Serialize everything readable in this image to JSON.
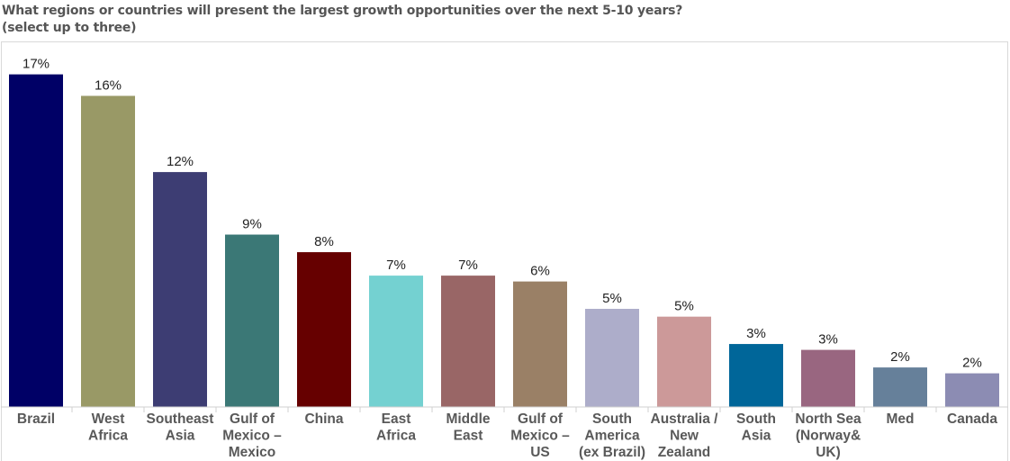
{
  "chart_data": {
    "type": "bar",
    "title": "What regions or countries will present the largest growth opportunities over the next 5-10 years?",
    "subtitle": "(select up to three)",
    "xlabel": "",
    "ylabel": "",
    "ylim": [
      0,
      17.5
    ],
    "grid": false,
    "legend": "none",
    "categories": [
      [
        "Brazil"
      ],
      [
        "West",
        "Africa"
      ],
      [
        "Southeast",
        "Asia"
      ],
      [
        "Gulf of",
        "Mexico –",
        "Mexico"
      ],
      [
        "China"
      ],
      [
        "East",
        "Africa"
      ],
      [
        "Middle",
        "East"
      ],
      [
        "Gulf of",
        "Mexico –",
        "US"
      ],
      [
        "South",
        "America",
        "(ex Brazil)"
      ],
      [
        "Australia /",
        "New",
        "Zealand"
      ],
      [
        "South",
        "Asia"
      ],
      [
        "North Sea",
        "(Norway&",
        "UK)"
      ],
      [
        "Med"
      ],
      [
        "Canada"
      ]
    ],
    "values": [
      17,
      15.9,
      12,
      8.8,
      7.9,
      6.7,
      6.7,
      6.4,
      5.0,
      4.6,
      3.2,
      2.9,
      2.0,
      1.7
    ],
    "labels": [
      "17%",
      "16%",
      "12%",
      "9%",
      "8%",
      "7%",
      "7%",
      "6%",
      "5%",
      "5%",
      "3%",
      "3%",
      "2%",
      "2%"
    ],
    "colors": [
      "#000066",
      "#999966",
      "#3d3d73",
      "#3b7876",
      "#660000",
      "#74d1d1",
      "#996666",
      "#9a8066",
      "#adadca",
      "#cc9999",
      "#006699",
      "#996680",
      "#66809a",
      "#8c8cb3"
    ]
  }
}
